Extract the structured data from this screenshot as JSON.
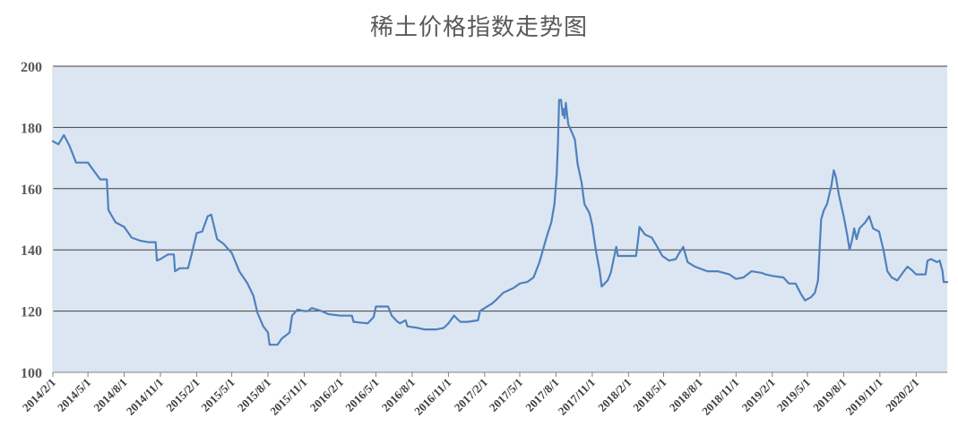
{
  "chart_data": {
    "type": "line",
    "title": "稀土价格指数走势图",
    "xlabel": "",
    "ylabel": "",
    "ylim": [
      100,
      200
    ],
    "yticks": [
      100,
      120,
      140,
      160,
      180,
      200
    ],
    "grid": true,
    "legend": "none",
    "x_range": [
      "2014-02-01",
      "2020-04-20"
    ],
    "x_ticks": [
      "2014/2/1",
      "2014/5/1",
      "2014/8/1",
      "2014/11/1",
      "2015/2/1",
      "2015/5/1",
      "2015/8/1",
      "2015/11/1",
      "2016/2/1",
      "2016/5/1",
      "2016/8/1",
      "2016/11/1",
      "2017/2/1",
      "2017/5/1",
      "2017/8/1",
      "2017/11/1",
      "2018/2/1",
      "2018/5/1",
      "2018/8/1",
      "2018/11/1",
      "2019/2/1",
      "2019/5/1",
      "2019/8/1",
      "2019/11/1",
      "2020/2/1"
    ],
    "series": [
      {
        "color": "#4f81bd",
        "points": [
          [
            "2014-02-01",
            175.5
          ],
          [
            "2014-02-15",
            174.5
          ],
          [
            "2014-03-01",
            177.5
          ],
          [
            "2014-03-15",
            174
          ],
          [
            "2014-04-01",
            168.5
          ],
          [
            "2014-05-01",
            168.5
          ],
          [
            "2014-05-15",
            166
          ],
          [
            "2014-06-01",
            163
          ],
          [
            "2014-06-18",
            163
          ],
          [
            "2014-06-22",
            153
          ],
          [
            "2014-07-10",
            149
          ],
          [
            "2014-08-01",
            147.5
          ],
          [
            "2014-08-20",
            144
          ],
          [
            "2014-09-10",
            143
          ],
          [
            "2014-10-01",
            142.5
          ],
          [
            "2014-10-20",
            142.5
          ],
          [
            "2014-10-23",
            136.5
          ],
          [
            "2014-11-01",
            137
          ],
          [
            "2014-11-20",
            138.5
          ],
          [
            "2014-12-05",
            138.5
          ],
          [
            "2014-12-08",
            133
          ],
          [
            "2014-12-20",
            134
          ],
          [
            "2015-01-10",
            134
          ],
          [
            "2015-01-20",
            139
          ],
          [
            "2015-02-01",
            145.5
          ],
          [
            "2015-02-15",
            146
          ],
          [
            "2015-03-01",
            151
          ],
          [
            "2015-03-10",
            151.5
          ],
          [
            "2015-03-25",
            143.5
          ],
          [
            "2015-04-10",
            142
          ],
          [
            "2015-05-01",
            139
          ],
          [
            "2015-05-20",
            133
          ],
          [
            "2015-06-10",
            129
          ],
          [
            "2015-06-25",
            125
          ],
          [
            "2015-07-05",
            119.5
          ],
          [
            "2015-07-20",
            115
          ],
          [
            "2015-08-01",
            113
          ],
          [
            "2015-08-05",
            109
          ],
          [
            "2015-08-25",
            109
          ],
          [
            "2015-09-05",
            111
          ],
          [
            "2015-09-25",
            113
          ],
          [
            "2015-10-01",
            118.5
          ],
          [
            "2015-10-15",
            120.5
          ],
          [
            "2015-11-01",
            120
          ],
          [
            "2015-11-10",
            120
          ],
          [
            "2015-11-20",
            121
          ],
          [
            "2015-12-15",
            120
          ],
          [
            "2016-01-01",
            119
          ],
          [
            "2016-02-01",
            118.5
          ],
          [
            "2016-03-01",
            118.5
          ],
          [
            "2016-03-05",
            116.5
          ],
          [
            "2016-04-10",
            116
          ],
          [
            "2016-04-25",
            118
          ],
          [
            "2016-05-01",
            121.5
          ],
          [
            "2016-06-01",
            121.5
          ],
          [
            "2016-06-10",
            118.5
          ],
          [
            "2016-06-25",
            116.5
          ],
          [
            "2016-07-01",
            116
          ],
          [
            "2016-07-15",
            117
          ],
          [
            "2016-07-20",
            115
          ],
          [
            "2016-08-15",
            114.5
          ],
          [
            "2016-09-01",
            114
          ],
          [
            "2016-10-01",
            114
          ],
          [
            "2016-10-20",
            114.5
          ],
          [
            "2016-11-01",
            116
          ],
          [
            "2016-11-15",
            118.5
          ],
          [
            "2016-12-01",
            116.5
          ],
          [
            "2016-12-20",
            116.5
          ],
          [
            "2017-01-15",
            117
          ],
          [
            "2017-01-20",
            120
          ],
          [
            "2017-02-01",
            121
          ],
          [
            "2017-02-20",
            122.5
          ],
          [
            "2017-03-05",
            124
          ],
          [
            "2017-03-20",
            126
          ],
          [
            "2017-04-15",
            127.5
          ],
          [
            "2017-05-01",
            129
          ],
          [
            "2017-05-20",
            129.5
          ],
          [
            "2017-06-05",
            131
          ],
          [
            "2017-06-20",
            136
          ],
          [
            "2017-07-01",
            141
          ],
          [
            "2017-07-10",
            145
          ],
          [
            "2017-07-20",
            149
          ],
          [
            "2017-07-28",
            155
          ],
          [
            "2017-08-03",
            165
          ],
          [
            "2017-08-06",
            175
          ],
          [
            "2017-08-09",
            189
          ],
          [
            "2017-08-14",
            189
          ],
          [
            "2017-08-18",
            184
          ],
          [
            "2017-08-21",
            186
          ],
          [
            "2017-08-23",
            183
          ],
          [
            "2017-08-26",
            188
          ],
          [
            "2017-09-01",
            181
          ],
          [
            "2017-09-10",
            178.5
          ],
          [
            "2017-09-18",
            176
          ],
          [
            "2017-09-25",
            168
          ],
          [
            "2017-10-05",
            162
          ],
          [
            "2017-10-12",
            155
          ],
          [
            "2017-10-25",
            152
          ],
          [
            "2017-11-01",
            148
          ],
          [
            "2017-11-10",
            140
          ],
          [
            "2017-11-20",
            133
          ],
          [
            "2017-11-25",
            128
          ],
          [
            "2017-12-10",
            130
          ],
          [
            "2017-12-18",
            132.5
          ],
          [
            "2018-01-01",
            141
          ],
          [
            "2018-01-05",
            138
          ],
          [
            "2018-02-20",
            138
          ],
          [
            "2018-02-25",
            143
          ],
          [
            "2018-03-01",
            147.5
          ],
          [
            "2018-03-15",
            145
          ],
          [
            "2018-04-01",
            144
          ],
          [
            "2018-04-15",
            141
          ],
          [
            "2018-04-28",
            138
          ],
          [
            "2018-05-15",
            136.5
          ],
          [
            "2018-06-01",
            137
          ],
          [
            "2018-06-10",
            139
          ],
          [
            "2018-06-20",
            141
          ],
          [
            "2018-07-01",
            136
          ],
          [
            "2018-07-20",
            134.5
          ],
          [
            "2018-08-20",
            133
          ],
          [
            "2018-09-15",
            133
          ],
          [
            "2018-10-15",
            132
          ],
          [
            "2018-11-01",
            130.5
          ],
          [
            "2018-11-20",
            131
          ],
          [
            "2018-12-10",
            133
          ],
          [
            "2019-01-05",
            132.5
          ],
          [
            "2019-01-15",
            132
          ],
          [
            "2019-02-01",
            131.5
          ],
          [
            "2019-03-01",
            131
          ],
          [
            "2019-03-15",
            129
          ],
          [
            "2019-04-01",
            129
          ],
          [
            "2019-04-15",
            125.5
          ],
          [
            "2019-04-25",
            123.5
          ],
          [
            "2019-05-10",
            124.5
          ],
          [
            "2019-05-20",
            126
          ],
          [
            "2019-05-28",
            130
          ],
          [
            "2019-06-05",
            150
          ],
          [
            "2019-06-12",
            153
          ],
          [
            "2019-06-20",
            155
          ],
          [
            "2019-07-01",
            161
          ],
          [
            "2019-07-07",
            166
          ],
          [
            "2019-07-12",
            164
          ],
          [
            "2019-07-20",
            158
          ],
          [
            "2019-08-01",
            151
          ],
          [
            "2019-08-10",
            145
          ],
          [
            "2019-08-16",
            140
          ],
          [
            "2019-08-22",
            143
          ],
          [
            "2019-08-28",
            147
          ],
          [
            "2019-09-03",
            143.5
          ],
          [
            "2019-09-10",
            147
          ],
          [
            "2019-09-25",
            149
          ],
          [
            "2019-10-05",
            151
          ],
          [
            "2019-10-15",
            147
          ],
          [
            "2019-10-30",
            146
          ],
          [
            "2019-11-10",
            140
          ],
          [
            "2019-11-20",
            133
          ],
          [
            "2019-12-01",
            131
          ],
          [
            "2019-12-15",
            130
          ],
          [
            "2020-01-01",
            133
          ],
          [
            "2020-01-10",
            134.5
          ],
          [
            "2020-01-20",
            133.5
          ],
          [
            "2020-02-01",
            132
          ],
          [
            "2020-02-25",
            132
          ],
          [
            "2020-03-01",
            136.5
          ],
          [
            "2020-03-10",
            137
          ],
          [
            "2020-03-25",
            136
          ],
          [
            "2020-04-01",
            136.5
          ],
          [
            "2020-04-08",
            133
          ],
          [
            "2020-04-11",
            129.5
          ],
          [
            "2020-04-20",
            129.5
          ]
        ]
      }
    ]
  }
}
